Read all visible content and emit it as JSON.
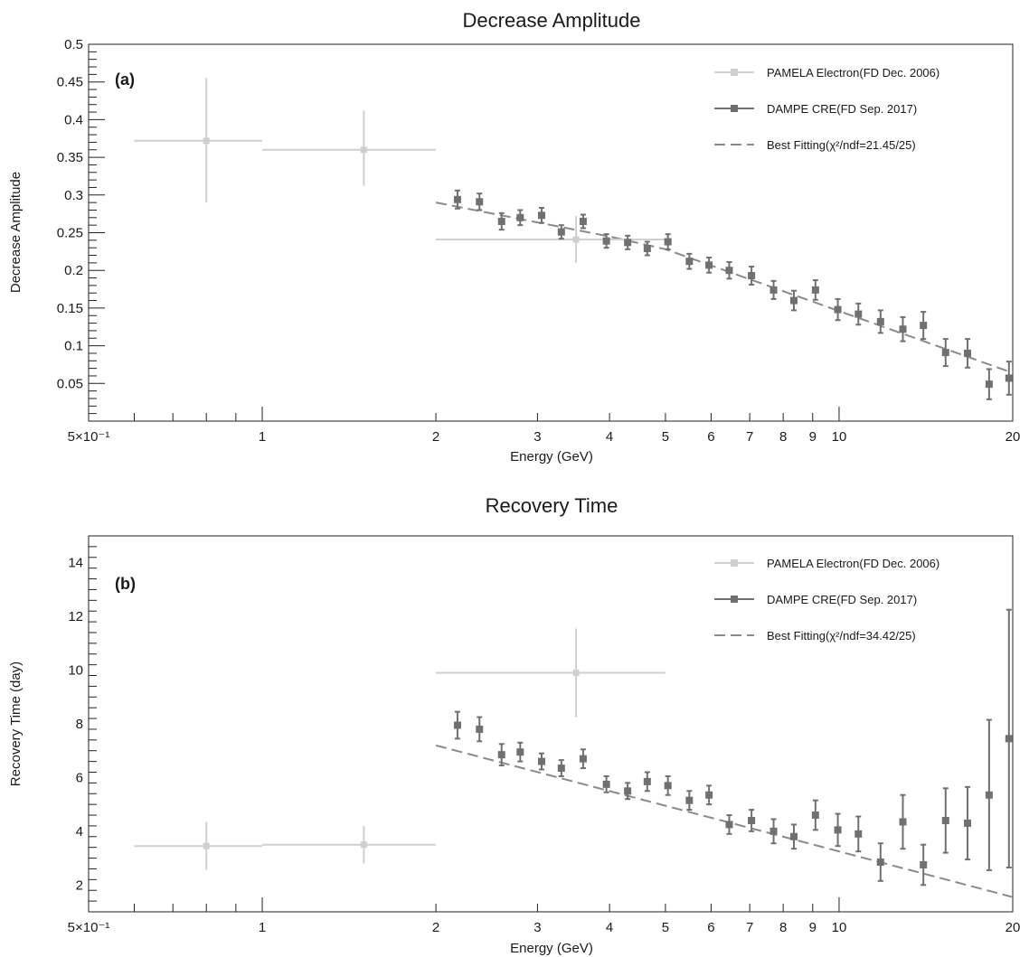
{
  "chart_data": [
    {
      "type": "scatter",
      "title": "Decrease Amplitude",
      "panel_label": "(a)",
      "xlabel": "Energy (GeV)",
      "ylabel": "Decrease Amplitude",
      "xscale": "log",
      "xlim": [
        0.5,
        20
      ],
      "ylim": [
        0,
        0.5
      ],
      "xtick_labels": [
        "5×10⁻¹",
        "1",
        "2",
        "3",
        "4",
        "5",
        "6",
        "7",
        "8",
        "9",
        "10",
        "20"
      ],
      "xtick_values": [
        0.5,
        1,
        2,
        3,
        4,
        5,
        6,
        7,
        8,
        9,
        10,
        20
      ],
      "ytick_labels": [
        "0.05",
        "0.1",
        "0.15",
        "0.2",
        "0.25",
        "0.3",
        "0.35",
        "0.4",
        "0.45",
        "0.5"
      ],
      "ytick_values": [
        0.05,
        0.1,
        0.15,
        0.2,
        0.25,
        0.3,
        0.35,
        0.4,
        0.45,
        0.5
      ],
      "legend_position": "top-right",
      "colors": {
        "pamela": "#cfcfcf",
        "dampe": "#707070",
        "fit": "#8a8a8a"
      },
      "legend": [
        {
          "label": "PAMELA Electron(FD Dec. 2006)",
          "kind": "pamela"
        },
        {
          "label": "DAMPE CRE(FD Sep. 2017)",
          "kind": "dampe"
        },
        {
          "label": "Best Fitting(χ²/ndf=21.45/25)",
          "kind": "fit"
        }
      ],
      "series": [
        {
          "name": "PAMELA Electron(FD Dec. 2006)",
          "points": [
            {
              "x": 0.8,
              "y": 0.372,
              "xlo": 0.6,
              "xhi": 1.0,
              "ylo": 0.29,
              "yhi": 0.455
            },
            {
              "x": 1.5,
              "y": 0.36,
              "xlo": 1.0,
              "xhi": 2.0,
              "ylo": 0.312,
              "yhi": 0.412
            },
            {
              "x": 3.5,
              "y": 0.241,
              "xlo": 2.0,
              "xhi": 5.0,
              "ylo": 0.21,
              "yhi": 0.272
            }
          ]
        },
        {
          "name": "DAMPE CRE(FD Sep. 2017)",
          "points": [
            {
              "x": 2.18,
              "y": 0.294,
              "err": 0.012
            },
            {
              "x": 2.38,
              "y": 0.291,
              "err": 0.011
            },
            {
              "x": 2.6,
              "y": 0.265,
              "err": 0.011
            },
            {
              "x": 2.8,
              "y": 0.27,
              "err": 0.01
            },
            {
              "x": 3.05,
              "y": 0.273,
              "err": 0.01
            },
            {
              "x": 3.3,
              "y": 0.251,
              "err": 0.009
            },
            {
              "x": 3.6,
              "y": 0.265,
              "err": 0.009
            },
            {
              "x": 3.95,
              "y": 0.239,
              "err": 0.009
            },
            {
              "x": 4.3,
              "y": 0.237,
              "err": 0.009
            },
            {
              "x": 4.65,
              "y": 0.229,
              "err": 0.009
            },
            {
              "x": 5.05,
              "y": 0.238,
              "err": 0.01
            },
            {
              "x": 5.5,
              "y": 0.212,
              "err": 0.01
            },
            {
              "x": 5.95,
              "y": 0.207,
              "err": 0.01
            },
            {
              "x": 6.45,
              "y": 0.2,
              "err": 0.011
            },
            {
              "x": 7.05,
              "y": 0.193,
              "err": 0.012
            },
            {
              "x": 7.7,
              "y": 0.174,
              "err": 0.012
            },
            {
              "x": 8.35,
              "y": 0.16,
              "err": 0.013
            },
            {
              "x": 9.1,
              "y": 0.174,
              "err": 0.013
            },
            {
              "x": 9.95,
              "y": 0.148,
              "err": 0.014
            },
            {
              "x": 10.8,
              "y": 0.142,
              "err": 0.014
            },
            {
              "x": 11.8,
              "y": 0.132,
              "err": 0.015
            },
            {
              "x": 12.9,
              "y": 0.122,
              "err": 0.016
            },
            {
              "x": 14.0,
              "y": 0.127,
              "err": 0.018
            },
            {
              "x": 15.3,
              "y": 0.091,
              "err": 0.018
            },
            {
              "x": 16.7,
              "y": 0.09,
              "err": 0.019
            },
            {
              "x": 18.2,
              "y": 0.049,
              "err": 0.02
            },
            {
              "x": 19.7,
              "y": 0.057,
              "err": 0.022
            }
          ]
        },
        {
          "name": "Best Fitting(χ²/ndf=21.45/25)",
          "line": [
            {
              "x": 2.0,
              "y": 0.29
            },
            {
              "x": 4.0,
              "y": 0.245
            },
            {
              "x": 5.0,
              "y": 0.228
            },
            {
              "x": 20.0,
              "y": 0.064
            }
          ]
        }
      ]
    },
    {
      "type": "scatter",
      "title": "Recovery Time",
      "panel_label": "(b)",
      "xlabel": "Energy (GeV)",
      "ylabel": "Recovery Time (day)",
      "xscale": "log",
      "xlim": [
        0.5,
        20
      ],
      "ylim": [
        1,
        15
      ],
      "xtick_labels": [
        "5×10⁻¹",
        "1",
        "2",
        "3",
        "4",
        "5",
        "6",
        "7",
        "8",
        "9",
        "10",
        "20"
      ],
      "xtick_values": [
        0.5,
        1,
        2,
        3,
        4,
        5,
        6,
        7,
        8,
        9,
        10,
        20
      ],
      "ytick_labels": [
        "2",
        "4",
        "6",
        "8",
        "10",
        "12",
        "14"
      ],
      "ytick_values": [
        2,
        4,
        6,
        8,
        10,
        12,
        14
      ],
      "legend_position": "top-right",
      "colors": {
        "pamela": "#cfcfcf",
        "dampe": "#707070",
        "fit": "#8a8a8a"
      },
      "legend": [
        {
          "label": "PAMELA Electron(FD Dec. 2006)",
          "kind": "pamela"
        },
        {
          "label": "DAMPE CRE(FD Sep. 2017)",
          "kind": "dampe"
        },
        {
          "label": "Best Fitting(χ²/ndf=34.42/25)",
          "kind": "fit"
        }
      ],
      "series": [
        {
          "name": "PAMELA Electron(FD Dec. 2006)",
          "points": [
            {
              "x": 0.8,
              "y": 3.45,
              "xlo": 0.6,
              "xhi": 1.0,
              "ylo": 2.55,
              "yhi": 4.35
            },
            {
              "x": 1.5,
              "y": 3.5,
              "xlo": 1.0,
              "xhi": 2.0,
              "ylo": 2.8,
              "yhi": 4.2
            },
            {
              "x": 3.5,
              "y": 9.9,
              "xlo": 2.0,
              "xhi": 5.0,
              "ylo": 8.25,
              "yhi": 11.55
            }
          ]
        },
        {
          "name": "DAMPE CRE(FD Sep. 2017)",
          "points": [
            {
              "x": 2.18,
              "y": 7.95,
              "err": 0.5
            },
            {
              "x": 2.38,
              "y": 7.8,
              "err": 0.45
            },
            {
              "x": 2.6,
              "y": 6.85,
              "err": 0.4
            },
            {
              "x": 2.8,
              "y": 6.95,
              "err": 0.35
            },
            {
              "x": 3.05,
              "y": 6.6,
              "err": 0.3
            },
            {
              "x": 3.3,
              "y": 6.35,
              "err": 0.3
            },
            {
              "x": 3.6,
              "y": 6.7,
              "err": 0.35
            },
            {
              "x": 3.95,
              "y": 5.75,
              "err": 0.3
            },
            {
              "x": 4.3,
              "y": 5.5,
              "err": 0.3
            },
            {
              "x": 4.65,
              "y": 5.85,
              "err": 0.35
            },
            {
              "x": 5.05,
              "y": 5.7,
              "err": 0.35
            },
            {
              "x": 5.5,
              "y": 5.15,
              "err": 0.35
            },
            {
              "x": 5.95,
              "y": 5.35,
              "err": 0.35
            },
            {
              "x": 6.45,
              "y": 4.25,
              "err": 0.35
            },
            {
              "x": 7.05,
              "y": 4.4,
              "err": 0.4
            },
            {
              "x": 7.7,
              "y": 4.0,
              "err": 0.45
            },
            {
              "x": 8.35,
              "y": 3.8,
              "err": 0.45
            },
            {
              "x": 9.1,
              "y": 4.6,
              "err": 0.55
            },
            {
              "x": 9.95,
              "y": 4.05,
              "err": 0.6
            },
            {
              "x": 10.8,
              "y": 3.9,
              "err": 0.65
            },
            {
              "x": 11.8,
              "y": 2.85,
              "err": 0.7
            },
            {
              "x": 12.9,
              "y": 4.35,
              "err": 1.0
            },
            {
              "x": 14.0,
              "y": 2.75,
              "err": 0.75
            },
            {
              "x": 15.3,
              "y": 4.4,
              "err": 1.2
            },
            {
              "x": 16.7,
              "y": 4.3,
              "err": 1.35
            },
            {
              "x": 18.2,
              "y": 5.35,
              "err": 2.8
            },
            {
              "x": 19.7,
              "y": 7.45,
              "err": 4.8
            }
          ]
        },
        {
          "name": "Best Fitting(χ²/ndf=34.42/25)",
          "line": [
            {
              "x": 2.0,
              "y": 7.2
            },
            {
              "x": 20.0,
              "y": 1.55
            }
          ]
        }
      ]
    }
  ]
}
